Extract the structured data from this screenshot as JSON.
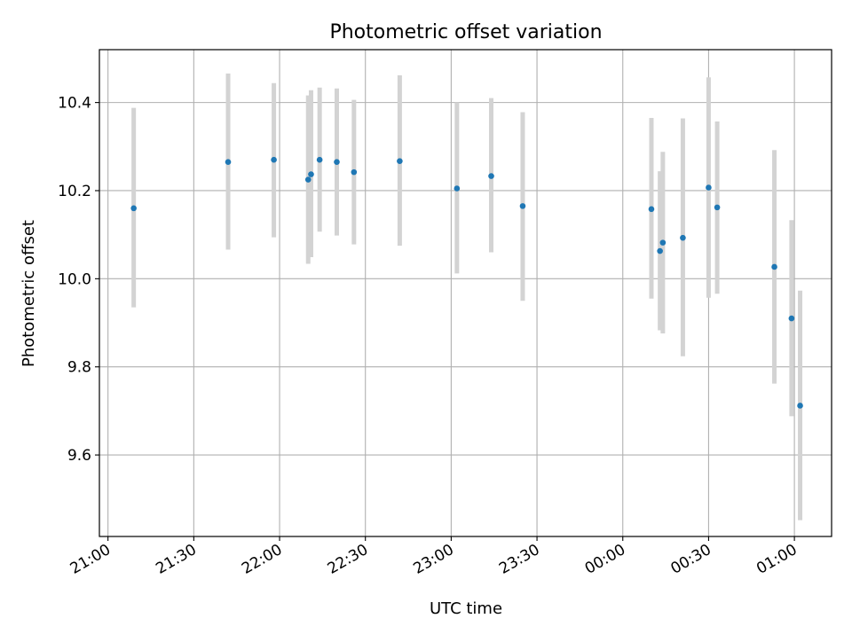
{
  "chart_data": {
    "type": "scatter",
    "title": "Photometric offset variation",
    "xlabel": "UTC time",
    "ylabel": "Photometric offset",
    "grid": true,
    "x_is_time": true,
    "x_ticks": [
      "21:00",
      "21:30",
      "22:00",
      "22:30",
      "23:00",
      "23:30",
      "00:00",
      "00:30",
      "01:00"
    ],
    "y_ticks": [
      "9.6",
      "9.8",
      "10.0",
      "10.2",
      "10.4"
    ],
    "xlim": [
      "20:57",
      "01:13"
    ],
    "ylim": [
      9.415,
      10.52
    ],
    "colors": {
      "marker": "#1f77b4",
      "errorbar": "#d3d3d3",
      "grid": "#b0b0b0"
    },
    "points": [
      {
        "t": "21:09",
        "y": 10.16,
        "lo": 9.935,
        "hi": 10.388
      },
      {
        "t": "21:42",
        "y": 10.265,
        "lo": 10.066,
        "hi": 10.466
      },
      {
        "t": "21:58",
        "y": 10.27,
        "lo": 10.094,
        "hi": 10.444
      },
      {
        "t": "22:10",
        "y": 10.225,
        "lo": 10.034,
        "hi": 10.416
      },
      {
        "t": "22:11",
        "y": 10.237,
        "lo": 10.049,
        "hi": 10.428
      },
      {
        "t": "22:14",
        "y": 10.27,
        "lo": 10.107,
        "hi": 10.434
      },
      {
        "t": "22:20",
        "y": 10.265,
        "lo": 10.098,
        "hi": 10.432
      },
      {
        "t": "22:26",
        "y": 10.242,
        "lo": 10.078,
        "hi": 10.406
      },
      {
        "t": "22:42",
        "y": 10.267,
        "lo": 10.075,
        "hi": 10.462
      },
      {
        "t": "23:02",
        "y": 10.205,
        "lo": 10.012,
        "hi": 10.4
      },
      {
        "t": "23:14",
        "y": 10.233,
        "lo": 10.06,
        "hi": 10.41
      },
      {
        "t": "23:25",
        "y": 10.165,
        "lo": 9.95,
        "hi": 10.378
      },
      {
        "t": "00:10",
        "y": 10.158,
        "lo": 9.955,
        "hi": 10.365
      },
      {
        "t": "00:13",
        "y": 10.063,
        "lo": 9.883,
        "hi": 10.244
      },
      {
        "t": "00:14",
        "y": 10.082,
        "lo": 9.876,
        "hi": 10.288
      },
      {
        "t": "00:21",
        "y": 10.093,
        "lo": 9.824,
        "hi": 10.364
      },
      {
        "t": "00:30",
        "y": 10.207,
        "lo": 9.957,
        "hi": 10.457
      },
      {
        "t": "00:33",
        "y": 10.162,
        "lo": 9.966,
        "hi": 10.357
      },
      {
        "t": "00:53",
        "y": 10.027,
        "lo": 9.762,
        "hi": 10.292
      },
      {
        "t": "00:59",
        "y": 9.91,
        "lo": 9.688,
        "hi": 10.133
      },
      {
        "t": "01:02",
        "y": 9.712,
        "lo": 9.452,
        "hi": 9.973
      }
    ]
  }
}
